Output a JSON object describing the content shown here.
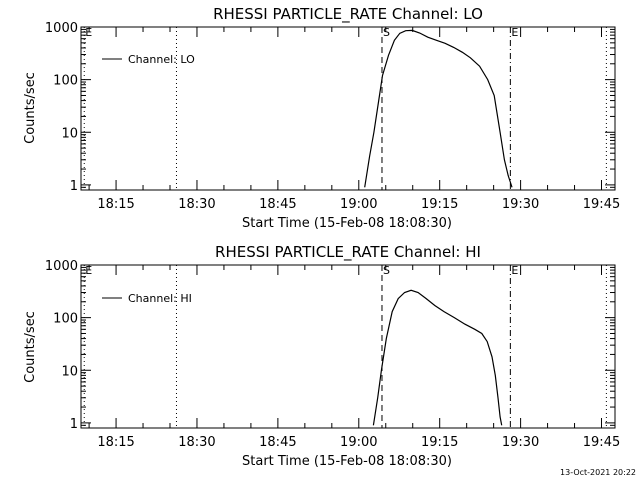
{
  "footer": {
    "timestamp": "13-Oct-2021 20:22"
  },
  "chart_data": [
    {
      "type": "line",
      "title": "RHESSI PARTICLE_RATE Channel: LO",
      "xlabel": "Start Time (15-Feb-08 18:08:30)",
      "ylabel": "Counts/sec",
      "yscale": "log",
      "ylim": [
        0.8,
        1000
      ],
      "xlim_min": [
        0,
        99
      ],
      "xticks_min": [
        6.5,
        21.5,
        36.5,
        51.5,
        66.5,
        81.5,
        96.5
      ],
      "xtick_labels": [
        "18:15",
        "18:30",
        "18:45",
        "19:00",
        "19:15",
        "19:30",
        "19:45"
      ],
      "yticks": [
        1,
        10,
        100,
        1000
      ],
      "ytick_labels": [
        "1",
        "10",
        "100",
        "1000"
      ],
      "legend": {
        "label": "Channel: LO",
        "position": "top-left"
      },
      "markers": [
        {
          "label": "E",
          "x_min": 0.6,
          "style": "dotted"
        },
        {
          "label": "",
          "x_min": 17.7,
          "style": "dotted"
        },
        {
          "label": "S",
          "x_min": 55.8,
          "style": "dashed"
        },
        {
          "label": "E",
          "x_min": 79.6,
          "style": "dashdot"
        },
        {
          "label": "",
          "x_min": 97.4,
          "style": "dotted"
        }
      ],
      "series": [
        {
          "name": "Channel: LO",
          "x_min": [
            52.6,
            53.5,
            54.3,
            55.2,
            55.9,
            57.0,
            58.1,
            59.1,
            60.2,
            61.4,
            62.8,
            64.3,
            65.9,
            67.5,
            69.1,
            70.7,
            72.2,
            73.9,
            75.4,
            76.6,
            77.7,
            78.5,
            79.2,
            79.9
          ],
          "y": [
            0.9,
            3.5,
            10,
            40,
            120,
            290,
            560,
            760,
            850,
            860,
            770,
            640,
            560,
            490,
            410,
            330,
            260,
            180,
            100,
            50,
            10,
            3,
            1.5,
            0.9
          ]
        }
      ]
    },
    {
      "type": "line",
      "title": "RHESSI PARTICLE_RATE Channel: HI",
      "xlabel": "Start Time (15-Feb-08 18:08:30)",
      "ylabel": "Counts/sec",
      "yscale": "log",
      "ylim": [
        0.8,
        1000
      ],
      "xlim_min": [
        0,
        99
      ],
      "xticks_min": [
        6.5,
        21.5,
        36.5,
        51.5,
        66.5,
        81.5,
        96.5
      ],
      "xtick_labels": [
        "18:15",
        "18:30",
        "18:45",
        "19:00",
        "19:15",
        "19:30",
        "19:45"
      ],
      "yticks": [
        1,
        10,
        100,
        1000
      ],
      "ytick_labels": [
        "1",
        "10",
        "100",
        "1000"
      ],
      "legend": {
        "label": "Channel: HI",
        "position": "top-left"
      },
      "markers": [
        {
          "label": "E",
          "x_min": 0.6,
          "style": "dotted"
        },
        {
          "label": "",
          "x_min": 17.7,
          "style": "dotted"
        },
        {
          "label": "S",
          "x_min": 55.8,
          "style": "dashed"
        },
        {
          "label": "E",
          "x_min": 79.6,
          "style": "dashdot"
        },
        {
          "label": "",
          "x_min": 97.4,
          "style": "dotted"
        }
      ],
      "series": [
        {
          "name": "Channel: HI",
          "x_min": [
            54.2,
            55.0,
            55.7,
            56.6,
            57.7,
            58.8,
            60.0,
            61.2,
            62.5,
            64.0,
            65.6,
            67.3,
            69.2,
            71.2,
            73.0,
            74.3,
            75.3,
            76.2,
            76.8,
            77.3,
            77.7,
            78.0
          ],
          "y": [
            0.9,
            3,
            10,
            40,
            130,
            230,
            300,
            330,
            300,
            230,
            170,
            130,
            100,
            75,
            60,
            50,
            35,
            18,
            8,
            3,
            1.3,
            0.9
          ]
        }
      ]
    }
  ]
}
